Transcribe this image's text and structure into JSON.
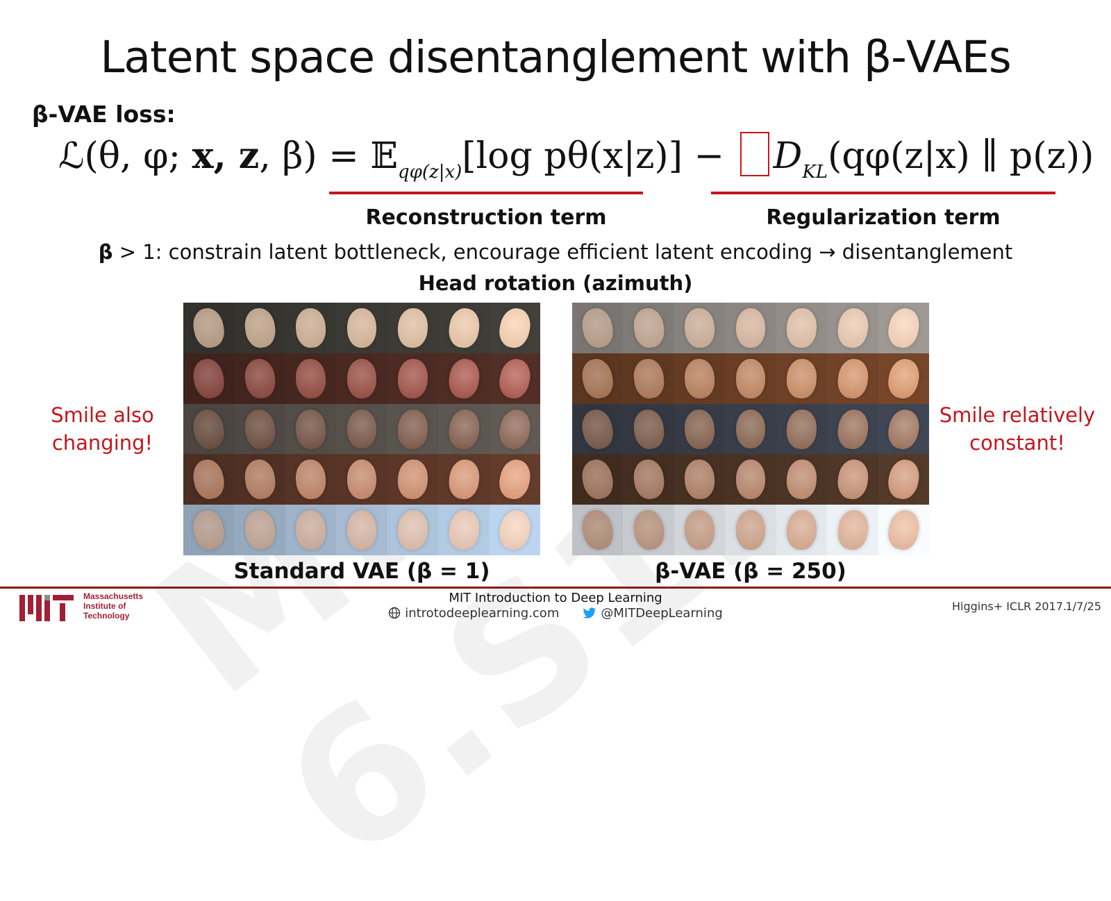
{
  "slide": {
    "watermark": "MIT 6.S191",
    "title": "Latent space disentanglement with β-VAEs",
    "loss_label": "β-VAE loss:",
    "formula": {
      "lhs": "ℒ(θ, φ; ",
      "lhs_vars": "x, z",
      "lhs_end": ", β) = ",
      "expectation": "𝔼",
      "expectation_sub": "qφ(z|x)",
      "recon": "[log pθ(x|z)] − ",
      "kl": "D",
      "kl_sub": "KL",
      "kl_arg": "(qφ(z|x) ∥ p(z))"
    },
    "reconstruction_label": "Reconstruction term",
    "regularization_label": "Regularization term",
    "beta_note_symbol": "β",
    "beta_note_text": " > 1: constrain latent bottleneck, encourage efficient latent encoding → disentanglement",
    "head_rotation_label": "Head rotation (azimuth)",
    "left_caption": "Standard VAE (β = 1)",
    "right_caption": "β-VAE (β = 250)",
    "left_note_line1": "Smile also",
    "left_note_line2": "changing!",
    "right_note_line1": "Smile relatively",
    "right_note_line2": "constant!",
    "accent_color": "#c4161c"
  },
  "footer": {
    "mit_line1": "Massachusetts",
    "mit_line2": "Institute of",
    "mit_line3": "Technology",
    "course": "MIT Introduction to Deep Learning",
    "website": "introtodeeplearning.com",
    "twitter": "@MITDeepLearning",
    "citation": "Higgins+ ICLR 2017.",
    "date": "1/7/25"
  },
  "face_grids": {
    "standard_vae_rows": [
      {
        "bg": "#3b3a35",
        "skin": "#d9b79a"
      },
      {
        "bg": "#4a2a22",
        "skin": "#9b4c42"
      },
      {
        "bg": "#58524d",
        "skin": "#7a5646"
      },
      {
        "bg": "#5a3628",
        "skin": "#c98a6a"
      },
      {
        "bg": "#a9bfd6",
        "skin": "#d8b8a6"
      }
    ],
    "beta_vae_rows": [
      {
        "bg": "#8f8a86",
        "skin": "#d9b9a1"
      },
      {
        "bg": "#6b3f26",
        "skin": "#c48760"
      },
      {
        "bg": "#3a3f4b",
        "skin": "#8c6651"
      },
      {
        "bg": "#4b3425",
        "skin": "#b9856a"
      },
      {
        "bg": "#dfe3e8",
        "skin": "#d1a58c"
      }
    ],
    "columns": 7
  }
}
